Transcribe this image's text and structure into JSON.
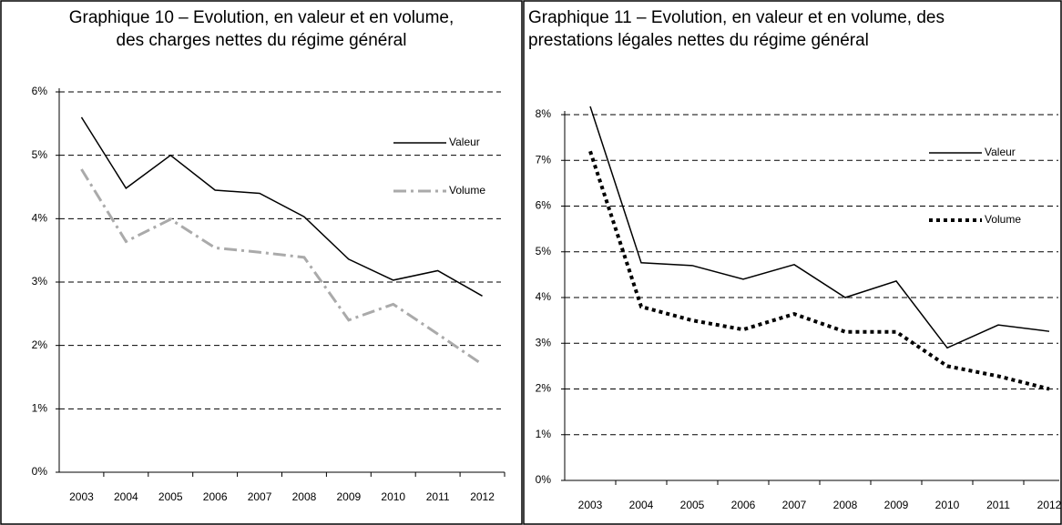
{
  "chart_data": [
    {
      "type": "line",
      "title": [
        "Graphique 10 – Evolution, en valeur et en volume,",
        "des charges nettes du régime général"
      ],
      "categories": [
        "2003",
        "2004",
        "2005",
        "2006",
        "2007",
        "2008",
        "2009",
        "2010",
        "2011",
        "2012"
      ],
      "series": [
        {
          "name": "Valeur",
          "color": "#000000",
          "dash": "solid",
          "values": [
            5.6,
            4.48,
            5.0,
            4.45,
            4.4,
            4.03,
            3.36,
            3.03,
            3.18,
            2.78
          ]
        },
        {
          "name": "Volume",
          "color": "#aaaaaa",
          "dash": "dashdot",
          "values": [
            4.78,
            3.64,
            3.99,
            3.54,
            3.47,
            3.39,
            2.4,
            2.65,
            2.18,
            1.7
          ]
        }
      ],
      "ylim": [
        0,
        6
      ],
      "yticks": [
        {
          "value": 0,
          "label": "0%"
        },
        {
          "value": 1,
          "label": "1%"
        },
        {
          "value": 2,
          "label": "2%"
        },
        {
          "value": 3,
          "label": "3%"
        },
        {
          "value": 4,
          "label": "4%"
        },
        {
          "value": 5,
          "label": "5%"
        },
        {
          "value": 6,
          "label": "6%"
        }
      ],
      "grid": true,
      "legend": "top-right"
    },
    {
      "type": "line",
      "title": [
        "Graphique 11 – Evolution, en valeur et en volume, des",
        "prestations légales nettes du régime général"
      ],
      "categories": [
        "2003",
        "2004",
        "2005",
        "2006",
        "2007",
        "2008",
        "2009",
        "2010",
        "2011",
        "2012"
      ],
      "series": [
        {
          "name": "Valeur",
          "color": "#000000",
          "dash": "solid",
          "values": [
            8.18,
            4.76,
            4.7,
            4.4,
            4.72,
            4.0,
            4.36,
            2.9,
            3.4,
            3.26
          ]
        },
        {
          "name": "Volume",
          "color": "#000000",
          "dash": "dotted",
          "values": [
            7.2,
            3.8,
            3.5,
            3.3,
            3.64,
            3.25,
            3.25,
            2.5,
            2.28,
            2.0
          ]
        }
      ],
      "ylim": [
        0,
        8
      ],
      "yticks": [
        {
          "value": 0,
          "label": "0%"
        },
        {
          "value": 1,
          "label": "1%"
        },
        {
          "value": 2,
          "label": "2%"
        },
        {
          "value": 3,
          "label": "3%"
        },
        {
          "value": 4,
          "label": "4%"
        },
        {
          "value": 5,
          "label": "5%"
        },
        {
          "value": 6,
          "label": "6%"
        },
        {
          "value": 7,
          "label": "7%"
        },
        {
          "value": 8,
          "label": "8%"
        }
      ],
      "grid": true,
      "legend": "top-right"
    }
  ]
}
